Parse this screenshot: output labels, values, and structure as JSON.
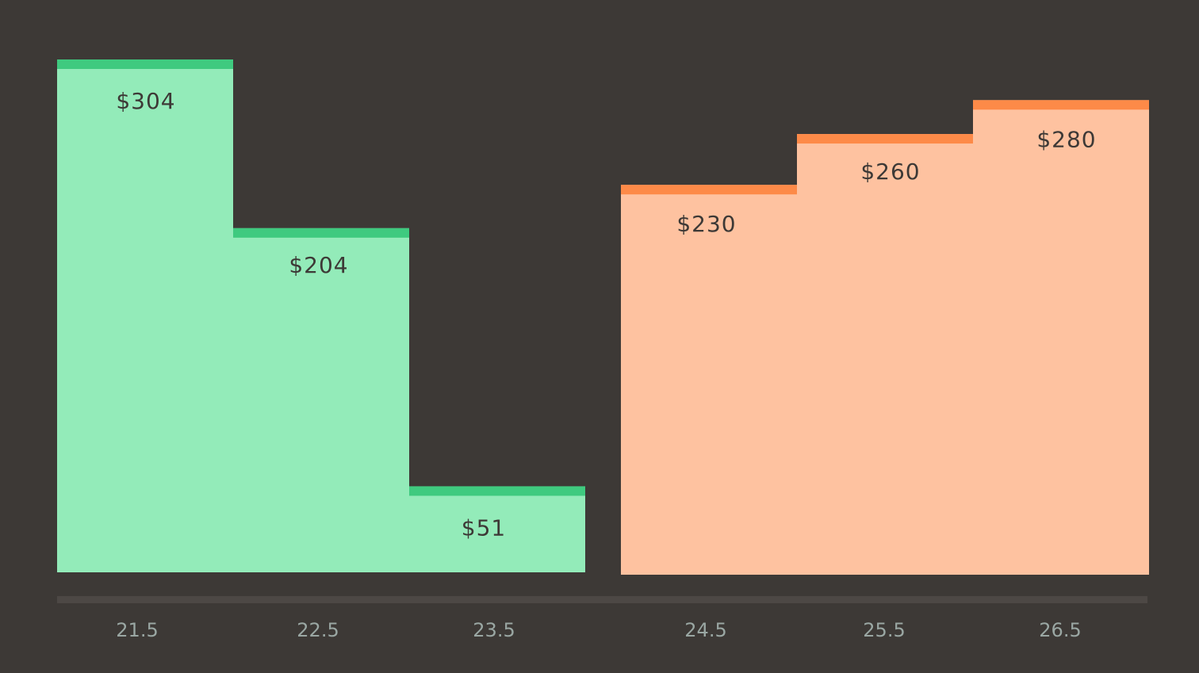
{
  "chart_data": {
    "type": "bar",
    "title": "",
    "xlabel": "",
    "ylabel": "",
    "ylim": [
      0,
      304
    ],
    "grid": false,
    "legend": "none",
    "series": [
      {
        "categories": [
          "21.5",
          "22.5",
          "23.5"
        ],
        "values": [
          304,
          204,
          51
        ],
        "labels": [
          "$304",
          "$204",
          "$51"
        ],
        "color": "#93ebb9",
        "edge_color": "#3fca7f"
      },
      {
        "categories": [
          "24.5",
          "25.5",
          "26.5"
        ],
        "values": [
          230,
          260,
          280
        ],
        "labels": [
          "$230",
          "$260",
          "$280"
        ],
        "color": "#fec2a0",
        "edge_color": "#fd8a48"
      }
    ],
    "axis_color": "#4d4845",
    "tick_color": "#9aa7a3",
    "background": "#3d3936"
  }
}
